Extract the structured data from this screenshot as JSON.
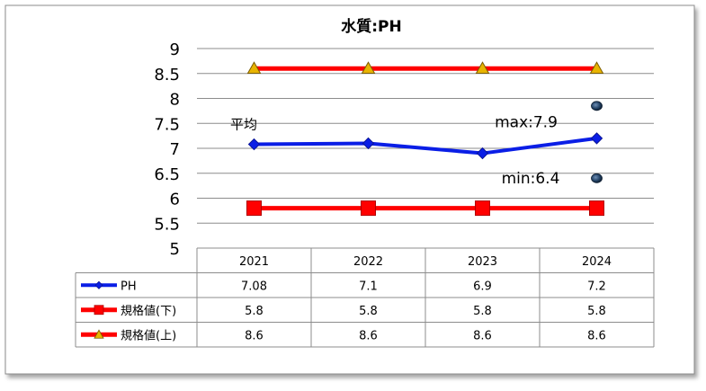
{
  "chart_data": {
    "type": "line",
    "title": "水質:PH",
    "categories": [
      "2021",
      "2022",
      "2023",
      "2024"
    ],
    "ylim": [
      5,
      9
    ],
    "y_ticks": [
      "9",
      "8.5",
      "8",
      "7.5",
      "7",
      "6.5",
      "6",
      "5.5",
      "5"
    ],
    "grid": true,
    "legend": "data-table",
    "series": [
      {
        "name": "PH",
        "values": [
          7.08,
          7.1,
          6.9,
          7.2
        ],
        "display": [
          "7.08",
          "7.1",
          "6.9",
          "7.2"
        ],
        "color": "#0a1ee6",
        "marker": "diamond"
      },
      {
        "name": "規格値(下)",
        "values": [
          5.8,
          5.8,
          5.8,
          5.8
        ],
        "display": [
          "5.8",
          "5.8",
          "5.8",
          "5.8"
        ],
        "color": "#ff0000",
        "marker": "square"
      },
      {
        "name": "規格値(上)",
        "values": [
          8.6,
          8.6,
          8.6,
          8.6
        ],
        "display": [
          "8.6",
          "8.6",
          "8.6",
          "8.6"
        ],
        "color": "#ff0000",
        "marker": "triangle"
      }
    ],
    "extremes": [
      {
        "x": "2024",
        "y": 7.85,
        "label": "max:7.9"
      },
      {
        "x": "2024",
        "y": 6.4,
        "label": "min:6.4"
      }
    ],
    "annotations": {
      "average_label": "平均"
    }
  }
}
